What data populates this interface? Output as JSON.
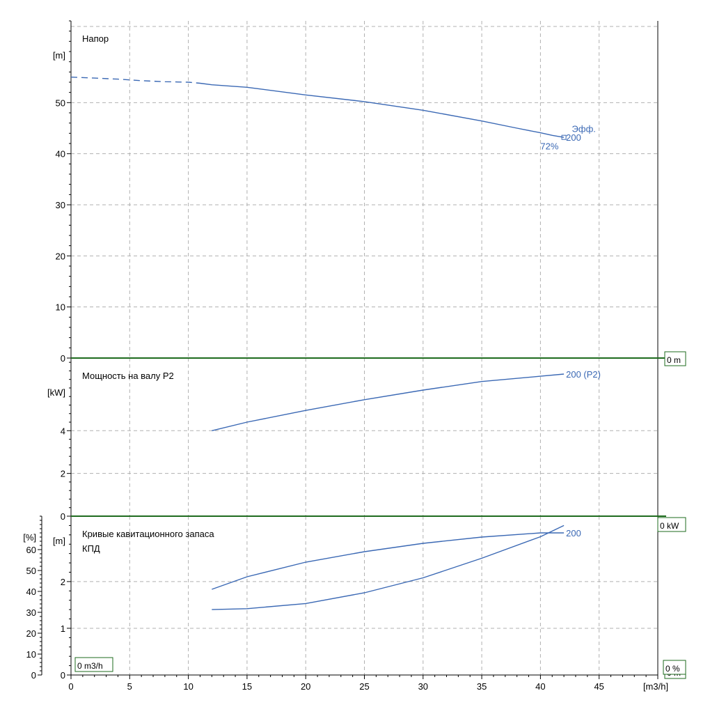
{
  "colors": {
    "curve": "#3a68b4",
    "grid": "#b0b0b0",
    "separator": "#1e6b1e",
    "bubble_border": "#1e6b1e",
    "axis": "#000000"
  },
  "chart_data": [
    {
      "type": "line",
      "title": "Напор",
      "ylabel": "[m]",
      "xlim": [
        0,
        50
      ],
      "ylim": [
        0,
        66
      ],
      "y_ticks": [
        0,
        10,
        20,
        30,
        40,
        50
      ],
      "grid": true,
      "side_bubble": "0 m",
      "series": [
        {
          "name": "200",
          "style": "dashed",
          "x": [
            0,
            2,
            4,
            6,
            8,
            10,
            11
          ],
          "y": [
            55.0,
            54.8,
            54.6,
            54.3,
            54.1,
            54.0,
            53.8
          ]
        },
        {
          "name": "200",
          "style": "solid",
          "x": [
            11,
            12,
            15,
            20,
            25,
            30,
            35,
            38,
            40,
            41,
            42
          ],
          "y": [
            53.8,
            53.5,
            53.0,
            51.5,
            50.2,
            48.5,
            46.4,
            45.0,
            44.1,
            43.6,
            43.2
          ]
        }
      ],
      "annotations": [
        {
          "text": "200",
          "x": 42,
          "y": 43.2
        },
        {
          "text": "Эфф.",
          "x": 42.5,
          "y": 44.0
        },
        {
          "text": "72%",
          "x": 40.0,
          "y": 41.5
        }
      ]
    },
    {
      "type": "line",
      "title": "Мощность на валу P2",
      "ylabel": "[kW]",
      "xlim": [
        0,
        50
      ],
      "ylim": [
        0,
        7.4
      ],
      "y_ticks": [
        0,
        2,
        4
      ],
      "grid": true,
      "side_bubble": "0 kW",
      "series": [
        {
          "name": "200 (P2)",
          "style": "solid",
          "x": [
            12,
            15,
            20,
            25,
            30,
            35,
            40,
            42
          ],
          "y": [
            4.0,
            4.4,
            4.95,
            5.45,
            5.9,
            6.3,
            6.55,
            6.65
          ]
        }
      ],
      "annotations": [
        {
          "text": "200 (P2)",
          "x": 42,
          "y": 6.65
        }
      ]
    },
    {
      "type": "line",
      "titles": [
        "Кривые кавитационного запаса",
        "КПД"
      ],
      "ylabel": "[m]",
      "ylabel2": "[%]",
      "xlabel": "[m3/h]",
      "xlim": [
        0,
        50
      ],
      "x_ticks": [
        0,
        5,
        10,
        15,
        20,
        25,
        30,
        35,
        40,
        45
      ],
      "ylim": [
        0,
        3.4
      ],
      "y_ticks": [
        0,
        1,
        2
      ],
      "ylim2": [
        0,
        76
      ],
      "y2_ticks": [
        0,
        10,
        20,
        30,
        40,
        50,
        60
      ],
      "grid": true,
      "corner_bubble": "0 m3/h",
      "side_bubbles": [
        "0 %",
        "0 m"
      ],
      "series": [
        {
          "name": "200",
          "axis": "right",
          "style": "solid",
          "x": [
            12,
            15,
            20,
            25,
            30,
            35,
            40,
            42
          ],
          "y": [
            41,
            47,
            54,
            59,
            63,
            66,
            68,
            68
          ]
        },
        {
          "name": "200",
          "axis": "left",
          "style": "solid",
          "x": [
            12,
            15,
            20,
            25,
            30,
            35,
            40,
            42
          ],
          "y": [
            1.4,
            1.42,
            1.53,
            1.76,
            2.08,
            2.5,
            2.96,
            3.2
          ]
        }
      ],
      "annotations": [
        {
          "text": "200",
          "x": 42,
          "y": 68
        }
      ]
    }
  ]
}
